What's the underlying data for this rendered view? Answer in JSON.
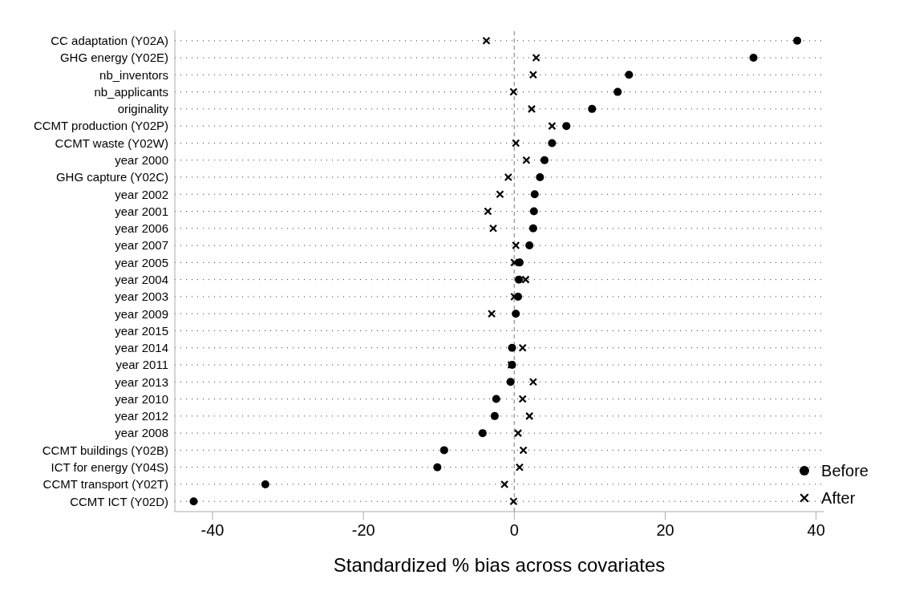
{
  "chart_data": {
    "type": "scatter",
    "xlabel": "Standardized % bias across covariates",
    "categories": [
      "CC adaptation (Y02A)",
      "GHG energy (Y02E)",
      "nb_inventors",
      "nb_applicants",
      "originality",
      "CCMT production (Y02P)",
      "CCMT waste (Y02W)",
      "year 2000",
      "GHG capture (Y02C)",
      "year 2002",
      "year 2001",
      "year 2006",
      "year 2007",
      "year 2005",
      "year 2004",
      "year 2003",
      "year 2009",
      "year 2015",
      "year 2014",
      "year 2011",
      "year 2013",
      "year 2010",
      "year 2012",
      "year 2008",
      "CCMT buildings (Y02B)",
      "ICT for energy (Y04S)",
      "CCMT transport (Y02T)",
      "CCMT ICT (Y02D)"
    ],
    "series": [
      {
        "name": "Before",
        "color": "#000000",
        "marker": "circle",
        "values": [
          37.5,
          31.7,
          15.2,
          13.7,
          10.3,
          6.9,
          5.0,
          4.0,
          3.4,
          2.7,
          2.6,
          2.5,
          2.0,
          0.7,
          0.6,
          0.5,
          0.2,
          null,
          -0.3,
          -0.3,
          -0.5,
          -2.4,
          -2.6,
          -4.2,
          -9.3,
          -10.2,
          -33.0,
          -42.5
        ]
      },
      {
        "name": "After",
        "color": "#000000",
        "marker": "cross",
        "values": [
          -3.7,
          2.9,
          2.5,
          -0.1,
          2.3,
          5.0,
          0.2,
          1.6,
          -0.8,
          -1.9,
          -3.5,
          -2.8,
          0.2,
          0.0,
          1.5,
          0.0,
          -3.0,
          null,
          1.1,
          -0.4,
          2.5,
          1.1,
          2.0,
          0.5,
          1.2,
          0.7,
          -1.3,
          -0.1
        ]
      }
    ],
    "orientation": "horizontal",
    "xlim": [
      -45,
      41
    ],
    "xticks": [
      -40,
      -20,
      0,
      20,
      40
    ],
    "ref_lines": [
      {
        "axis": "x",
        "value": 0,
        "color": "#a0a0a0",
        "line_style": "dashed"
      }
    ],
    "grid": "y",
    "legend": "bottom right"
  }
}
